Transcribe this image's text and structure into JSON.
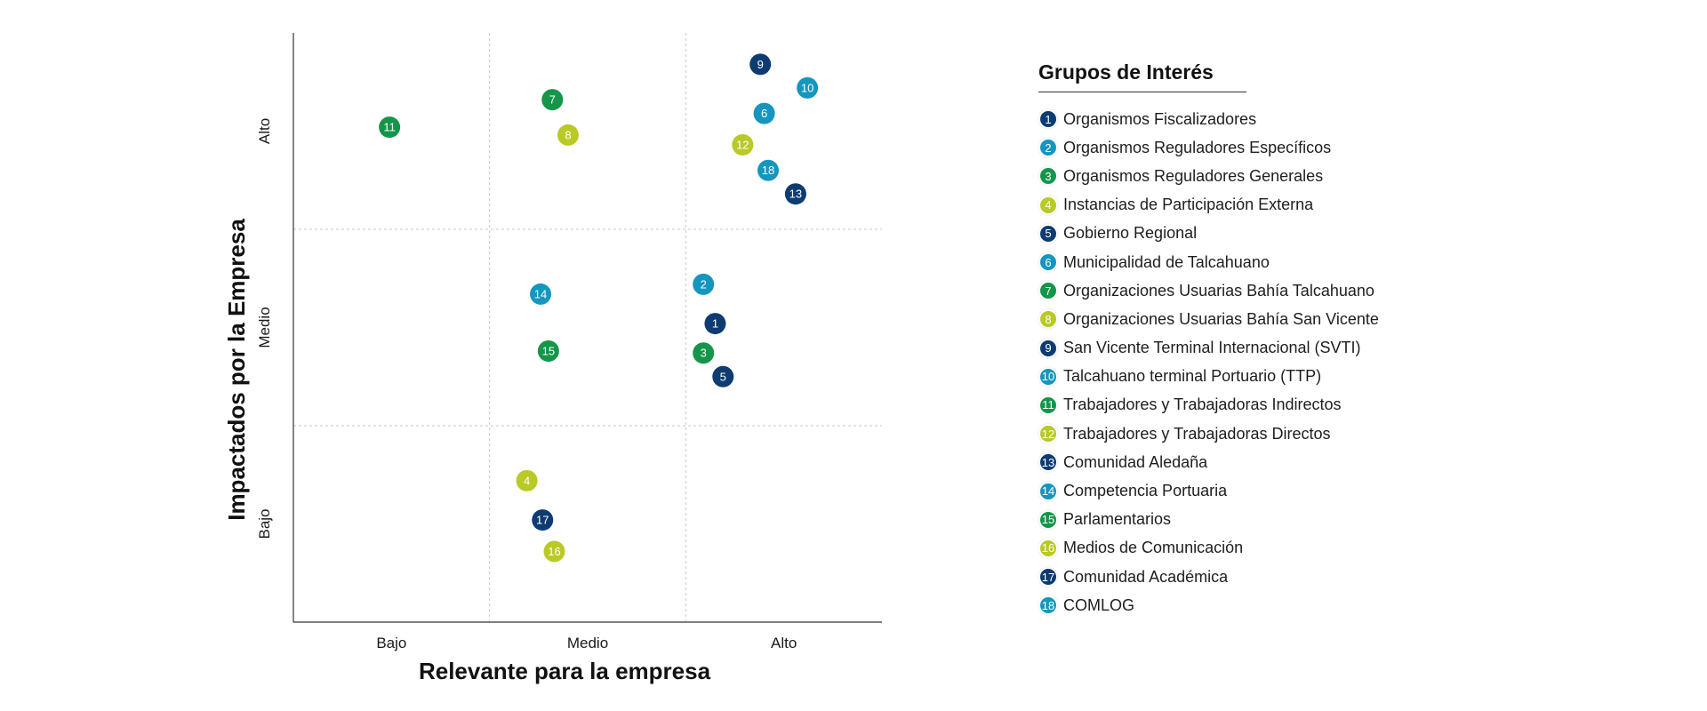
{
  "colors": {
    "navy": "#0d3b72",
    "teal": "#1596be",
    "green": "#14964a",
    "lime": "#b9c926"
  },
  "chart_data": {
    "type": "scatter",
    "xlabel": "Relevante para la empresa",
    "ylabel": "Impactados por la Empresa",
    "xcategories": [
      "Bajo",
      "Medio",
      "Alto"
    ],
    "ycategories": [
      "Bajo",
      "Medio",
      "Alto"
    ],
    "xlim": [
      0,
      3
    ],
    "ylim": [
      0,
      3
    ],
    "grid": true,
    "legend_position": "right",
    "points": [
      {
        "id": "1",
        "x": 2.15,
        "y": 1.52,
        "group": "navy"
      },
      {
        "id": "2",
        "x": 2.09,
        "y": 1.72,
        "group": "teal"
      },
      {
        "id": "3",
        "x": 2.09,
        "y": 1.37,
        "group": "green"
      },
      {
        "id": "4",
        "x": 1.19,
        "y": 0.72,
        "group": "lime"
      },
      {
        "id": "5",
        "x": 2.19,
        "y": 1.25,
        "group": "navy"
      },
      {
        "id": "6",
        "x": 2.4,
        "y": 2.59,
        "group": "teal"
      },
      {
        "id": "7",
        "x": 1.32,
        "y": 2.66,
        "group": "green"
      },
      {
        "id": "8",
        "x": 1.4,
        "y": 2.48,
        "group": "lime"
      },
      {
        "id": "9",
        "x": 2.38,
        "y": 2.84,
        "group": "navy"
      },
      {
        "id": "10",
        "x": 2.62,
        "y": 2.72,
        "group": "teal"
      },
      {
        "id": "11",
        "x": 0.49,
        "y": 2.52,
        "group": "green"
      },
      {
        "id": "12",
        "x": 2.29,
        "y": 2.43,
        "group": "lime"
      },
      {
        "id": "13",
        "x": 2.56,
        "y": 2.18,
        "group": "navy"
      },
      {
        "id": "14",
        "x": 1.26,
        "y": 1.67,
        "group": "teal"
      },
      {
        "id": "15",
        "x": 1.3,
        "y": 1.38,
        "group": "green"
      },
      {
        "id": "16",
        "x": 1.33,
        "y": 0.36,
        "group": "lime"
      },
      {
        "id": "17",
        "x": 1.27,
        "y": 0.52,
        "group": "navy"
      },
      {
        "id": "18",
        "x": 2.42,
        "y": 2.3,
        "group": "teal"
      }
    ]
  },
  "legend": {
    "title": "Grupos de Interés",
    "items": [
      {
        "num": "1",
        "label": "Organismos Fiscalizadores",
        "color": "#0d3b72"
      },
      {
        "num": "2",
        "label": "Organismos Reguladores Específicos",
        "color": "#1596be"
      },
      {
        "num": "3",
        "label": "Organismos Reguladores Generales",
        "color": "#14964a"
      },
      {
        "num": "4",
        "label": "Instancias de Participación Externa",
        "color": "#b9c926"
      },
      {
        "num": "5",
        "label": "Gobierno Regional",
        "color": "#0d3b72"
      },
      {
        "num": "6",
        "label": "Municipalidad de Talcahuano",
        "color": "#1596be"
      },
      {
        "num": "7",
        "label": "Organizaciones Usuarias Bahía Talcahuano",
        "color": "#14964a"
      },
      {
        "num": "8",
        "label": "Organizaciones Usuarias Bahía San Vicente",
        "color": "#b9c926"
      },
      {
        "num": "9",
        "label": "San Vicente Terminal Internacional (SVTI)",
        "color": "#0d3b72"
      },
      {
        "num": "10",
        "label": "Talcahuano terminal Portuario (TTP)",
        "color": "#1596be"
      },
      {
        "num": "11",
        "label": "Trabajadores y Trabajadoras Indirectos",
        "color": "#14964a"
      },
      {
        "num": "12",
        "label": "Trabajadores y Trabajadoras Directos",
        "color": "#b9c926"
      },
      {
        "num": "13",
        "label": "Comunidad Aledaña",
        "color": "#0d3b72"
      },
      {
        "num": "14",
        "label": "Competencia Portuaria",
        "color": "#1596be"
      },
      {
        "num": "15",
        "label": "Parlamentarios",
        "color": "#14964a"
      },
      {
        "num": "16",
        "label": "Medios de Comunicación",
        "color": "#b9c926"
      },
      {
        "num": "17",
        "label": "Comunidad Académica",
        "color": "#0d3b72"
      },
      {
        "num": "18",
        "label": "COMLOG",
        "color": "#1596be"
      }
    ]
  }
}
